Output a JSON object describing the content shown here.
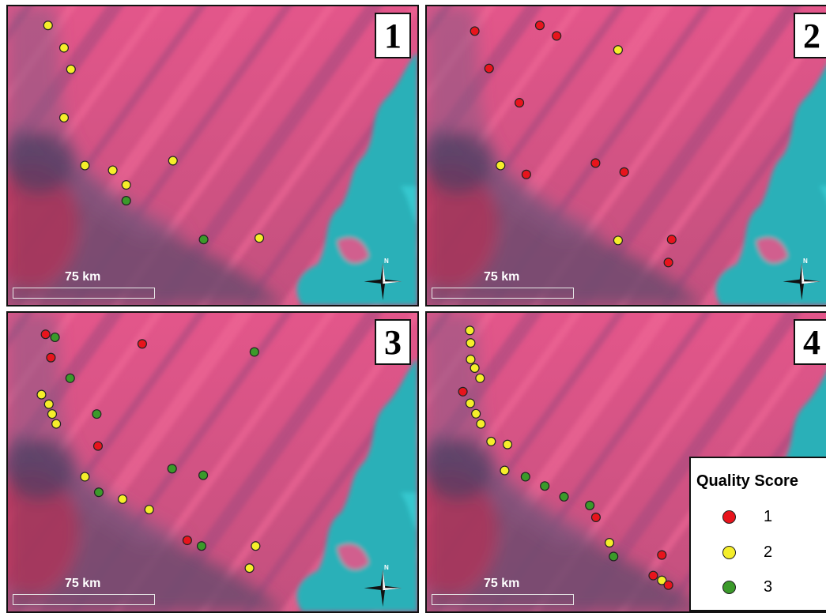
{
  "panels": [
    {
      "number": "1",
      "scale_label": "75 km",
      "points": [
        {
          "score": 2,
          "x": 0.098,
          "y": 0.064
        },
        {
          "score": 2,
          "x": 0.137,
          "y": 0.139
        },
        {
          "score": 2,
          "x": 0.154,
          "y": 0.211
        },
        {
          "score": 2,
          "x": 0.137,
          "y": 0.373
        },
        {
          "score": 2,
          "x": 0.188,
          "y": 0.533
        },
        {
          "score": 2,
          "x": 0.256,
          "y": 0.549
        },
        {
          "score": 2,
          "x": 0.289,
          "y": 0.598
        },
        {
          "score": 3,
          "x": 0.289,
          "y": 0.651
        },
        {
          "score": 2,
          "x": 0.403,
          "y": 0.517
        },
        {
          "score": 3,
          "x": 0.478,
          "y": 0.781
        },
        {
          "score": 2,
          "x": 0.614,
          "y": 0.776
        }
      ]
    },
    {
      "number": "2",
      "scale_label": "75 km",
      "points": [
        {
          "score": 1,
          "x": 0.117,
          "y": 0.083
        },
        {
          "score": 1,
          "x": 0.276,
          "y": 0.064
        },
        {
          "score": 1,
          "x": 0.317,
          "y": 0.099
        },
        {
          "score": 2,
          "x": 0.467,
          "y": 0.146
        },
        {
          "score": 1,
          "x": 0.152,
          "y": 0.208
        },
        {
          "score": 1,
          "x": 0.226,
          "y": 0.323
        },
        {
          "score": 2,
          "x": 0.18,
          "y": 0.533
        },
        {
          "score": 1,
          "x": 0.243,
          "y": 0.563
        },
        {
          "score": 1,
          "x": 0.412,
          "y": 0.525
        },
        {
          "score": 1,
          "x": 0.482,
          "y": 0.555
        },
        {
          "score": 2,
          "x": 0.467,
          "y": 0.784
        },
        {
          "score": 1,
          "x": 0.598,
          "y": 0.781
        },
        {
          "score": 1,
          "x": 0.59,
          "y": 0.858
        }
      ]
    },
    {
      "number": "3",
      "scale_label": "75 km",
      "points": [
        {
          "score": 1,
          "x": 0.092,
          "y": 0.072
        },
        {
          "score": 3,
          "x": 0.115,
          "y": 0.082
        },
        {
          "score": 1,
          "x": 0.105,
          "y": 0.15
        },
        {
          "score": 1,
          "x": 0.328,
          "y": 0.104
        },
        {
          "score": 3,
          "x": 0.602,
          "y": 0.131
        },
        {
          "score": 3,
          "x": 0.152,
          "y": 0.219
        },
        {
          "score": 2,
          "x": 0.082,
          "y": 0.274
        },
        {
          "score": 2,
          "x": 0.1,
          "y": 0.306
        },
        {
          "score": 2,
          "x": 0.108,
          "y": 0.339
        },
        {
          "score": 2,
          "x": 0.118,
          "y": 0.372
        },
        {
          "score": 3,
          "x": 0.217,
          "y": 0.339
        },
        {
          "score": 1,
          "x": 0.22,
          "y": 0.446
        },
        {
          "score": 2,
          "x": 0.188,
          "y": 0.549
        },
        {
          "score": 3,
          "x": 0.401,
          "y": 0.522
        },
        {
          "score": 3,
          "x": 0.477,
          "y": 0.544
        },
        {
          "score": 3,
          "x": 0.222,
          "y": 0.601
        },
        {
          "score": 2,
          "x": 0.28,
          "y": 0.624
        },
        {
          "score": 2,
          "x": 0.345,
          "y": 0.659
        },
        {
          "score": 1,
          "x": 0.438,
          "y": 0.762
        },
        {
          "score": 3,
          "x": 0.473,
          "y": 0.781
        },
        {
          "score": 2,
          "x": 0.605,
          "y": 0.781
        },
        {
          "score": 2,
          "x": 0.59,
          "y": 0.855
        }
      ]
    },
    {
      "number": "4",
      "scale_label": "75 km",
      "points": [
        {
          "score": 2,
          "x": 0.105,
          "y": 0.059
        },
        {
          "score": 2,
          "x": 0.107,
          "y": 0.101
        },
        {
          "score": 2,
          "x": 0.107,
          "y": 0.156
        },
        {
          "score": 2,
          "x": 0.117,
          "y": 0.185
        },
        {
          "score": 2,
          "x": 0.13,
          "y": 0.219
        },
        {
          "score": 1,
          "x": 0.088,
          "y": 0.264
        },
        {
          "score": 2,
          "x": 0.106,
          "y": 0.303
        },
        {
          "score": 2,
          "x": 0.12,
          "y": 0.338
        },
        {
          "score": 2,
          "x": 0.132,
          "y": 0.372
        },
        {
          "score": 2,
          "x": 0.157,
          "y": 0.431
        },
        {
          "score": 2,
          "x": 0.197,
          "y": 0.441
        },
        {
          "score": 2,
          "x": 0.19,
          "y": 0.528
        },
        {
          "score": 3,
          "x": 0.241,
          "y": 0.549
        },
        {
          "score": 3,
          "x": 0.288,
          "y": 0.58
        },
        {
          "score": 3,
          "x": 0.335,
          "y": 0.616
        },
        {
          "score": 3,
          "x": 0.398,
          "y": 0.645
        },
        {
          "score": 1,
          "x": 0.413,
          "y": 0.685
        },
        {
          "score": 2,
          "x": 0.446,
          "y": 0.77
        },
        {
          "score": 3,
          "x": 0.456,
          "y": 0.816
        },
        {
          "score": 1,
          "x": 0.574,
          "y": 0.811
        },
        {
          "score": 1,
          "x": 0.553,
          "y": 0.88
        },
        {
          "score": 2,
          "x": 0.574,
          "y": 0.896
        },
        {
          "score": 1,
          "x": 0.59,
          "y": 0.912
        }
      ]
    }
  ],
  "legend": {
    "title": "Quality Score",
    "items": [
      {
        "score": 1,
        "label": "1"
      },
      {
        "score": 2,
        "label": "2"
      },
      {
        "score": 3,
        "label": "3"
      }
    ]
  },
  "colors": {
    "score_1": "#e8141c",
    "score_2": "#f5ee2a",
    "score_3": "#3b9a2a",
    "terrain_pink": "#e8507a",
    "terrain_purple": "#7a4e70",
    "water_cyan": "#2ab0b8"
  }
}
